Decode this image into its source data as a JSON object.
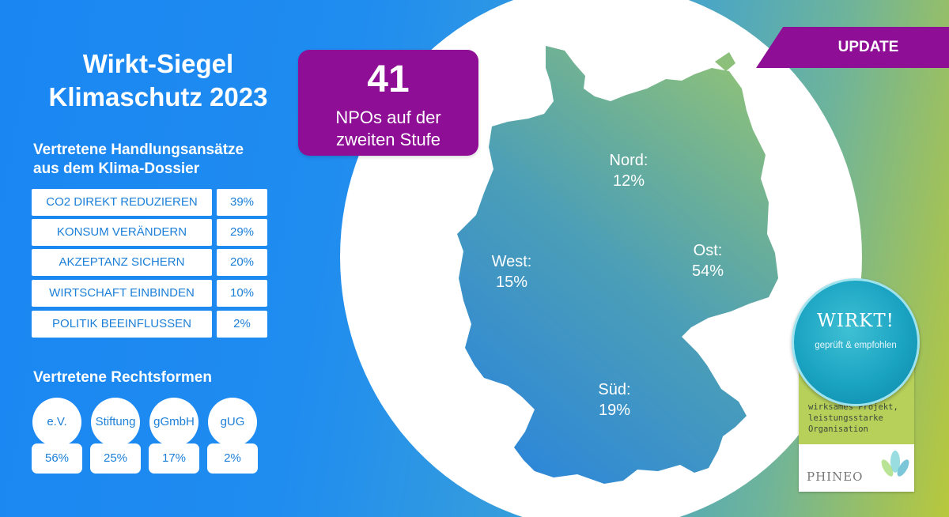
{
  "title_line1": "Wirkt-Siegel",
  "title_line2": "Klimaschutz 2023",
  "approaches": {
    "heading_line1": "Vertretene Handlungsansätze",
    "heading_line2": "aus dem Klima-Dossier",
    "rows": [
      {
        "label": "CO2 DIREKT REDUZIEREN",
        "pct": "39%"
      },
      {
        "label": "KONSUM VERÄNDERN",
        "pct": "29%"
      },
      {
        "label": "AKZEPTANZ SICHERN",
        "pct": "20%"
      },
      {
        "label": "WIRTSCHAFT EINBINDEN",
        "pct": "10%"
      },
      {
        "label": "POLITIK BEEINFLUSSEN",
        "pct": "2%"
      }
    ]
  },
  "legal_forms": {
    "heading": "Vertretene Rechtsformen",
    "items": [
      {
        "label": "e.V.",
        "pct": "56%"
      },
      {
        "label": "Stiftung",
        "pct": "25%"
      },
      {
        "label": "gGmbH",
        "pct": "17%"
      },
      {
        "label": "gUG",
        "pct": "2%"
      }
    ]
  },
  "npo_box": {
    "count": "41",
    "text_line1": "NPOs auf der",
    "text_line2": "zweiten Stufe"
  },
  "update_label": "UPDATE",
  "regions": [
    {
      "name": "Nord:",
      "pct": "12%"
    },
    {
      "name": "West:",
      "pct": "15%"
    },
    {
      "name": "Ost:",
      "pct": "54%"
    },
    {
      "name": "Süd:",
      "pct": "19%"
    }
  ],
  "seal": {
    "word": "WIRKT!",
    "sub": "geprüft & empfohlen",
    "desc_line1": "wirksames Projekt,",
    "desc_line2": "leistungsstarke",
    "desc_line3": "Organisation",
    "logo": "PHINEO"
  },
  "colors": {
    "primary_blue": "#1a86f2",
    "purple": "#8e0e96",
    "map_gradient_top": "#7aba8a",
    "map_gradient_bottom": "#2e8ad6",
    "seal_teal": "#1aa3c2",
    "seal_green": "#b7d05a"
  }
}
